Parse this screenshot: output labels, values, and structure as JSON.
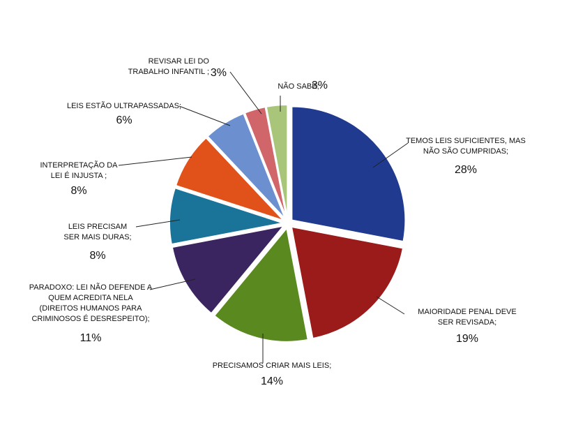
{
  "chart_data": {
    "type": "pie",
    "slices": [
      {
        "label_lines": [
          "TEMOS LEIS SUFICIENTES, MAS",
          "NÃO SÃO CUMPRIDAS;"
        ],
        "value": 28,
        "value_label": "28%",
        "color": "#1f3a8f"
      },
      {
        "label_lines": [
          "MAIORIDADE PENAL DEVE",
          "SER REVISADA;"
        ],
        "value": 19,
        "value_label": "19%",
        "color": "#9b1b1b"
      },
      {
        "label_lines": [
          "PRECISAMOS CRIAR MAIS LEIS;"
        ],
        "value": 14,
        "value_label": "14%",
        "color": "#5a8a1f"
      },
      {
        "label_lines": [
          "PARADOXO: LEI NÃO DEFENDE A",
          "QUEM ACREDITA NELA",
          "(DIREITOS HUMANOS PARA",
          "CRIMINOSOS É DESRESPEITO);"
        ],
        "value": 11,
        "value_label": "11%",
        "color": "#3b2560"
      },
      {
        "label_lines": [
          "LEIS PRECISAM",
          "SER MAIS DURAS;"
        ],
        "value": 8,
        "value_label": "8%",
        "color": "#1a7499"
      },
      {
        "label_lines": [
          "INTERPRETAÇÃO DA",
          "LEI É INJUSTA ;"
        ],
        "value": 8,
        "value_label": "8%",
        "color": "#e0521a"
      },
      {
        "label_lines": [
          "LEIS ESTÃO ULTRAPASSADAS;"
        ],
        "value": 6,
        "value_label": "6%",
        "color": "#6b8fcf"
      },
      {
        "label_lines": [
          "REVISAR LEI DO",
          "TRABALHO INFANTIL ;"
        ],
        "value": 3,
        "value_label": "3%",
        "color": "#d0656a"
      },
      {
        "label_lines": [
          "NÃO SABE;"
        ],
        "value": 3,
        "value_label": "3%",
        "color": "#a8c57a"
      }
    ]
  }
}
